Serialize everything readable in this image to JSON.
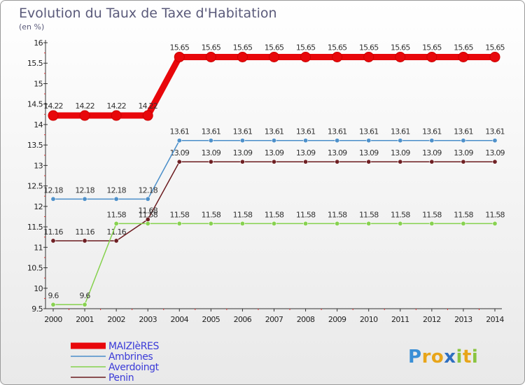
{
  "chart_data": {
    "type": "line",
    "title": "Evolution du Taux de Taxe d'Habitation",
    "subtitle": "(en %)",
    "x": [
      "2000",
      "2001",
      "2002",
      "2003",
      "2004",
      "2005",
      "2006",
      "2007",
      "2008",
      "2009",
      "2010",
      "2011",
      "2012",
      "2013",
      "2014"
    ],
    "ylim": [
      9.5,
      16
    ],
    "yticks": [
      "9.5",
      "10",
      "10.5",
      "11",
      "11.5",
      "12",
      "12.5",
      "13",
      "13.5",
      "14",
      "14.5",
      "15",
      "15.5",
      "16"
    ],
    "grid": false,
    "legend_position": "bottom-left",
    "series": [
      {
        "name": "MAIZIèRES",
        "color": "#e8070b",
        "values": [
          14.22,
          14.22,
          14.22,
          14.22,
          15.65,
          15.65,
          15.65,
          15.65,
          15.65,
          15.65,
          15.65,
          15.65,
          15.65,
          15.65,
          15.65
        ],
        "labels": [
          "14.22",
          "14.22",
          "14.22",
          "14.22",
          "15.65",
          "15.65",
          "15.65",
          "15.65",
          "15.65",
          "15.65",
          "15.65",
          "15.65",
          "15.65",
          "15.65",
          "15.65"
        ]
      },
      {
        "name": "Ambrines",
        "color": "#4a8ec9",
        "values": [
          12.18,
          12.18,
          12.18,
          12.18,
          13.61,
          13.61,
          13.61,
          13.61,
          13.61,
          13.61,
          13.61,
          13.61,
          13.61,
          13.61,
          13.61
        ],
        "labels": [
          "12.18",
          "12.18",
          "12.18",
          "12.18",
          "13.61",
          "13.61",
          "13.61",
          "13.61",
          "13.61",
          "13.61",
          "13.61",
          "13.61",
          "13.61",
          "13.61",
          "13.61"
        ]
      },
      {
        "name": "Averdoingt",
        "color": "#85d14c",
        "values": [
          9.6,
          9.6,
          11.58,
          11.58,
          11.58,
          11.58,
          11.58,
          11.58,
          11.58,
          11.58,
          11.58,
          11.58,
          11.58,
          11.58,
          11.58
        ],
        "labels": [
          "9.6",
          "9.6",
          "11.58",
          "11.58",
          "11.58",
          "11.58",
          "11.58",
          "11.58",
          "11.58",
          "11.58",
          "11.58",
          "11.58",
          "11.58",
          "11.58",
          "11.58"
        ]
      },
      {
        "name": "Penin",
        "color": "#6b1a1e",
        "values": [
          11.16,
          11.16,
          11.16,
          11.68,
          13.09,
          13.09,
          13.09,
          13.09,
          13.09,
          13.09,
          13.09,
          13.09,
          13.09,
          13.09,
          13.09
        ],
        "labels": [
          "11.16",
          "11.16",
          "11.16",
          "11.68",
          "13.09",
          "13.09",
          "13.09",
          "13.09",
          "13.09",
          "13.09",
          "13.09",
          "13.09",
          "13.09",
          "13.09",
          "13.09"
        ]
      }
    ]
  },
  "logo": {
    "text": "Proxiti",
    "letters": [
      "P",
      "r",
      "o",
      "x",
      "i",
      "t",
      "i"
    ],
    "colors": [
      "#3a8fd6",
      "#e8a51a",
      "#e8a51a",
      "#2f6fc0",
      "#8ac43f",
      "#e8a51a",
      "#8ac43f"
    ]
  }
}
